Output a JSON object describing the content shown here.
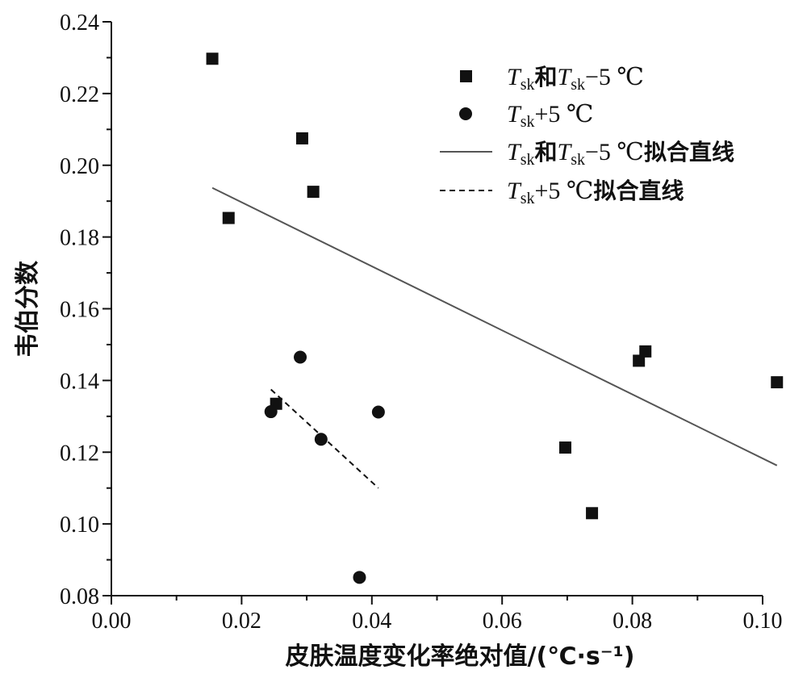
{
  "chart_data": {
    "type": "scatter",
    "xlabel": "皮肤温度变化率绝对值/(℃·s⁻¹)",
    "ylabel": "韦伯分数",
    "xlim": [
      0.0,
      0.1
    ],
    "ylim": [
      0.08,
      0.24
    ],
    "x_ticks": [
      "0.00",
      "0.02",
      "0.04",
      "0.06",
      "0.08",
      "0.10"
    ],
    "y_ticks": [
      "0.08",
      "0.10",
      "0.12",
      "0.14",
      "0.16",
      "0.18",
      "0.20",
      "0.22",
      "0.24"
    ],
    "grid": false,
    "legend_position": "top-right",
    "series": [
      {
        "name": "Tsk和Tsk−5 ℃",
        "marker": "square",
        "x": [
          0.0155,
          0.018,
          0.0293,
          0.031,
          0.0253,
          0.0697,
          0.0738,
          0.081,
          0.082,
          0.1022
        ],
        "y": [
          0.2297,
          0.1853,
          0.2075,
          0.1926,
          0.1335,
          0.1213,
          0.103,
          0.1455,
          0.1481,
          0.1395
        ]
      },
      {
        "name": "Tsk+5 ℃",
        "marker": "circle",
        "x": [
          0.0245,
          0.029,
          0.0322,
          0.041,
          0.0381
        ],
        "y": [
          0.1313,
          0.1465,
          0.1236,
          0.1312,
          0.0851
        ]
      }
    ],
    "fit_lines": [
      {
        "name": "Tsk和Tsk−5 ℃拟合直线",
        "style": "solid",
        "x": [
          0.0155,
          0.1022
        ],
        "y": [
          0.1937,
          0.1163
        ]
      },
      {
        "name": "Tsk+5 ℃拟合直线",
        "style": "dashed",
        "x": [
          0.0245,
          0.041
        ],
        "y": [
          0.1375,
          0.11
        ]
      }
    ],
    "colors": {
      "markers": "#111111",
      "fit_solid": "#555555",
      "fit_dashed": "#111111",
      "axes": "#111111"
    }
  }
}
